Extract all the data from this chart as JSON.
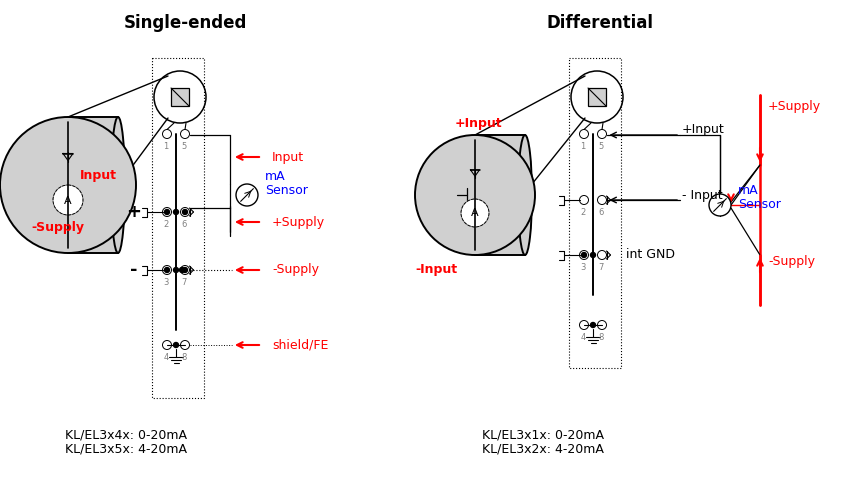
{
  "title_left": "Single-ended",
  "title_right": "Differential",
  "label_input_se": "Input",
  "label_supply_se": "-Supply",
  "label_input_arrow_se": "Input",
  "label_plus_supply_se": "+Supply",
  "label_minus_supply_se": "-Supply",
  "label_shield_se": "shield/FE",
  "label_mA_se": "mA",
  "label_sensor_se": "Sensor",
  "label_plus_sign": "+",
  "label_minus_sign": "-",
  "label_plus_input_diff_top": "+Input",
  "label_minus_input_diff": "-Input",
  "label_plus_input_diff": "+Input",
  "label_minus_input_diff2": "- Input",
  "label_plus_supply_diff": "+Supply",
  "label_minus_supply_diff": "-Supply",
  "label_mA_diff": "mA",
  "label_sensor_diff": "Sensor",
  "label_int_gnd": "int GND",
  "label_kl_se_1": "KL/EL3x4x: 0-20mA",
  "label_kl_se_2": "KL/EL3x5x: 4-20mA",
  "label_kl_diff_1": "KL/EL3x1x: 0-20mA",
  "label_kl_diff_2": "KL/EL3x2x: 4-20mA",
  "color_red": "#FF0000",
  "color_blue": "#0000FF",
  "color_black": "#000000",
  "color_lightgray": "#D0D0D0",
  "color_darkgray": "#808080",
  "background": "#FFFFFF"
}
